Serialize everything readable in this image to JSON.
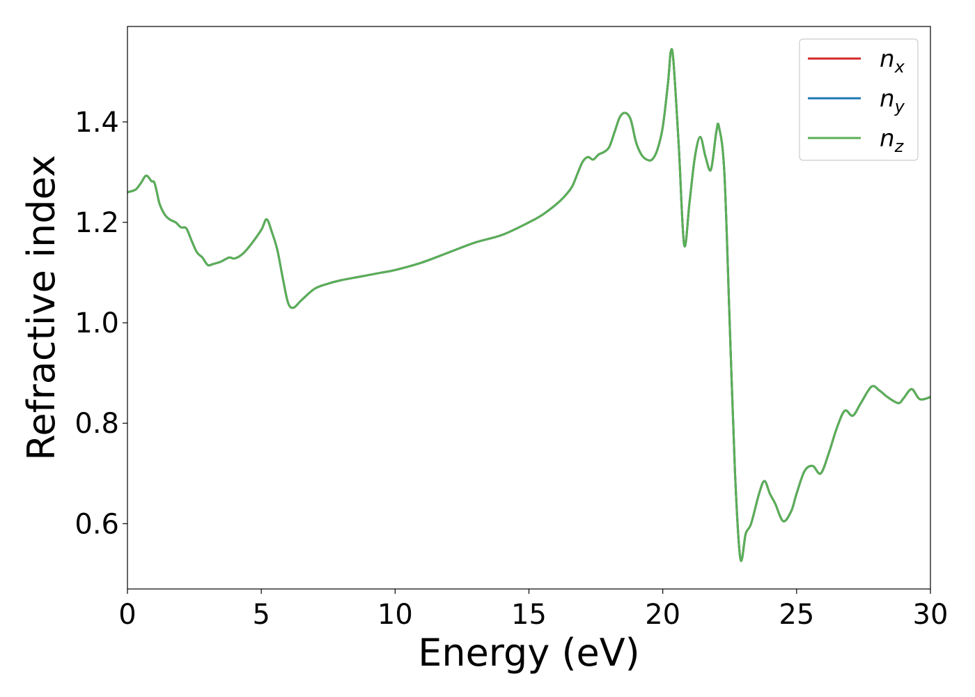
{
  "chart_data": {
    "type": "line",
    "title": "",
    "xlabel": "Energy (eV)",
    "ylabel": "Refractive index",
    "xlim": [
      0,
      30
    ],
    "ylim": [
      0.47,
      1.59
    ],
    "xticks": [
      0,
      5,
      10,
      15,
      20,
      25,
      30
    ],
    "xtick_labels": [
      "0",
      "5",
      "10",
      "15",
      "20",
      "25",
      "30"
    ],
    "yticks": [
      0.6,
      0.8,
      1.0,
      1.2,
      1.4
    ],
    "ytick_labels": [
      "0.6",
      "0.8",
      "1.0",
      "1.2",
      "1.4"
    ],
    "grid": false,
    "legend_position": "top-right",
    "x": [
      0,
      0.3,
      0.5,
      0.7,
      0.9,
      1.0,
      1.1,
      1.2,
      1.4,
      1.6,
      1.8,
      2.0,
      2.2,
      2.4,
      2.6,
      2.8,
      3.0,
      3.2,
      3.5,
      3.8,
      4.0,
      4.3,
      4.6,
      5.0,
      5.2,
      5.4,
      5.6,
      5.8,
      6.0,
      6.2,
      6.5,
      7.0,
      7.5,
      8.0,
      8.5,
      9.0,
      9.5,
      10,
      11,
      12,
      13,
      14,
      15,
      15.5,
      16,
      16.3,
      16.6,
      16.8,
      17.0,
      17.2,
      17.4,
      17.6,
      17.8,
      18.0,
      18.2,
      18.4,
      18.6,
      18.8,
      19.0,
      19.2,
      19.4,
      19.6,
      19.8,
      20.0,
      20.2,
      20.3,
      20.4,
      20.6,
      20.8,
      21.0,
      21.2,
      21.4,
      21.6,
      21.8,
      22.0,
      22.1,
      22.3,
      22.5,
      22.7,
      22.9,
      23.1,
      23.3,
      23.6,
      23.8,
      24.0,
      24.2,
      24.5,
      24.8,
      25.0,
      25.3,
      25.6,
      25.9,
      26.2,
      26.5,
      26.8,
      27.1,
      27.4,
      27.8,
      28.1,
      28.4,
      28.8,
      29.0,
      29.3,
      29.6,
      30.0
    ],
    "series": [
      {
        "name": "n_x",
        "name_base": "n",
        "name_sub": "x",
        "color": "#d62728",
        "values": [
          1.26,
          1.265,
          1.278,
          1.293,
          1.282,
          1.28,
          1.26,
          1.237,
          1.215,
          1.205,
          1.2,
          1.19,
          1.188,
          1.163,
          1.14,
          1.13,
          1.115,
          1.117,
          1.122,
          1.13,
          1.128,
          1.137,
          1.155,
          1.185,
          1.206,
          1.18,
          1.145,
          1.09,
          1.04,
          1.03,
          1.045,
          1.068,
          1.078,
          1.085,
          1.09,
          1.095,
          1.1,
          1.105,
          1.12,
          1.14,
          1.16,
          1.175,
          1.2,
          1.215,
          1.235,
          1.25,
          1.27,
          1.295,
          1.32,
          1.33,
          1.325,
          1.335,
          1.34,
          1.35,
          1.38,
          1.41,
          1.418,
          1.405,
          1.36,
          1.335,
          1.325,
          1.325,
          1.345,
          1.39,
          1.48,
          1.54,
          1.52,
          1.35,
          1.155,
          1.24,
          1.33,
          1.37,
          1.33,
          1.305,
          1.38,
          1.39,
          1.3,
          1.0,
          0.7,
          0.53,
          0.58,
          0.6,
          0.66,
          0.685,
          0.66,
          0.64,
          0.605,
          0.625,
          0.66,
          0.705,
          0.715,
          0.7,
          0.74,
          0.79,
          0.825,
          0.815,
          0.84,
          0.873,
          0.865,
          0.852,
          0.84,
          0.85,
          0.868,
          0.848,
          0.852
        ]
      },
      {
        "name": "n_y",
        "name_base": "n",
        "name_sub": "y",
        "color": "#1f77b4",
        "values": [
          1.26,
          1.265,
          1.278,
          1.293,
          1.282,
          1.28,
          1.26,
          1.237,
          1.215,
          1.205,
          1.2,
          1.19,
          1.188,
          1.163,
          1.14,
          1.13,
          1.115,
          1.117,
          1.122,
          1.13,
          1.128,
          1.137,
          1.155,
          1.185,
          1.206,
          1.18,
          1.145,
          1.09,
          1.04,
          1.03,
          1.045,
          1.068,
          1.078,
          1.085,
          1.09,
          1.095,
          1.1,
          1.105,
          1.12,
          1.14,
          1.16,
          1.175,
          1.2,
          1.215,
          1.235,
          1.25,
          1.27,
          1.295,
          1.32,
          1.33,
          1.325,
          1.335,
          1.34,
          1.35,
          1.38,
          1.41,
          1.418,
          1.405,
          1.36,
          1.335,
          1.325,
          1.325,
          1.345,
          1.39,
          1.48,
          1.54,
          1.52,
          1.35,
          1.155,
          1.24,
          1.33,
          1.37,
          1.33,
          1.305,
          1.38,
          1.39,
          1.3,
          1.0,
          0.7,
          0.53,
          0.58,
          0.6,
          0.66,
          0.685,
          0.66,
          0.64,
          0.605,
          0.625,
          0.66,
          0.705,
          0.715,
          0.7,
          0.74,
          0.79,
          0.825,
          0.815,
          0.84,
          0.873,
          0.865,
          0.852,
          0.84,
          0.85,
          0.868,
          0.848,
          0.852
        ]
      },
      {
        "name": "n_z",
        "name_base": "n",
        "name_sub": "z",
        "color": "#5aaf56",
        "values": [
          1.26,
          1.265,
          1.278,
          1.293,
          1.282,
          1.28,
          1.26,
          1.237,
          1.215,
          1.205,
          1.2,
          1.19,
          1.188,
          1.163,
          1.14,
          1.13,
          1.115,
          1.117,
          1.122,
          1.13,
          1.128,
          1.137,
          1.155,
          1.185,
          1.206,
          1.18,
          1.145,
          1.09,
          1.04,
          1.03,
          1.045,
          1.068,
          1.078,
          1.085,
          1.09,
          1.095,
          1.1,
          1.105,
          1.12,
          1.14,
          1.16,
          1.175,
          1.2,
          1.215,
          1.235,
          1.25,
          1.27,
          1.295,
          1.32,
          1.33,
          1.325,
          1.335,
          1.34,
          1.35,
          1.38,
          1.41,
          1.418,
          1.405,
          1.36,
          1.335,
          1.325,
          1.325,
          1.345,
          1.39,
          1.48,
          1.54,
          1.52,
          1.35,
          1.155,
          1.24,
          1.33,
          1.37,
          1.33,
          1.305,
          1.38,
          1.39,
          1.3,
          1.0,
          0.7,
          0.53,
          0.58,
          0.6,
          0.66,
          0.685,
          0.66,
          0.64,
          0.605,
          0.625,
          0.66,
          0.705,
          0.715,
          0.7,
          0.74,
          0.79,
          0.825,
          0.815,
          0.84,
          0.873,
          0.865,
          0.852,
          0.84,
          0.85,
          0.868,
          0.848,
          0.852
        ]
      }
    ]
  }
}
